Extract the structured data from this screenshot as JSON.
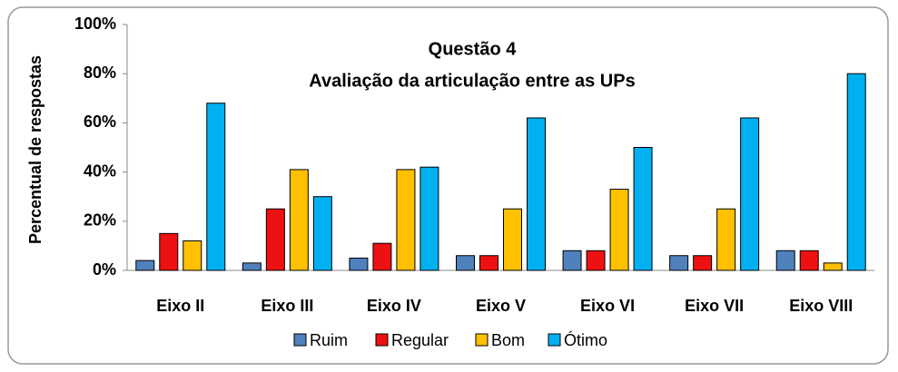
{
  "chart_data": {
    "type": "bar",
    "title": [
      "Questão 4",
      "Avaliação da articulação entre as UPs"
    ],
    "y_label": "Percentual de respostas",
    "categories": [
      "Eixo II",
      "Eixo III",
      "Eixo IV",
      "Eixo V",
      "Eixo VI",
      "Eixo VII",
      "Eixo VIII"
    ],
    "series": [
      {
        "name": "Ruim",
        "color": "#4f81bd",
        "values": [
          4,
          3,
          5,
          6,
          8,
          6,
          8
        ]
      },
      {
        "name": "Regular",
        "color": "#ee1111",
        "values": [
          15,
          25,
          11,
          6,
          8,
          6,
          8
        ]
      },
      {
        "name": "Bom",
        "color": "#ffc000",
        "values": [
          12,
          41,
          41,
          25,
          33,
          25,
          3
        ]
      },
      {
        "name": "Ótimo",
        "color": "#00b0f0",
        "values": [
          68,
          30,
          42,
          62,
          50,
          62,
          80
        ]
      }
    ],
    "ylim": [
      0,
      100
    ],
    "yticks": [
      {
        "value": 0,
        "label": "0%"
      },
      {
        "value": 20,
        "label": "20%"
      },
      {
        "value": 40,
        "label": "40%"
      },
      {
        "value": 60,
        "label": "60%"
      },
      {
        "value": 80,
        "label": "80%"
      },
      {
        "value": 100,
        "label": "100%"
      }
    ],
    "legend": "bottom"
  }
}
